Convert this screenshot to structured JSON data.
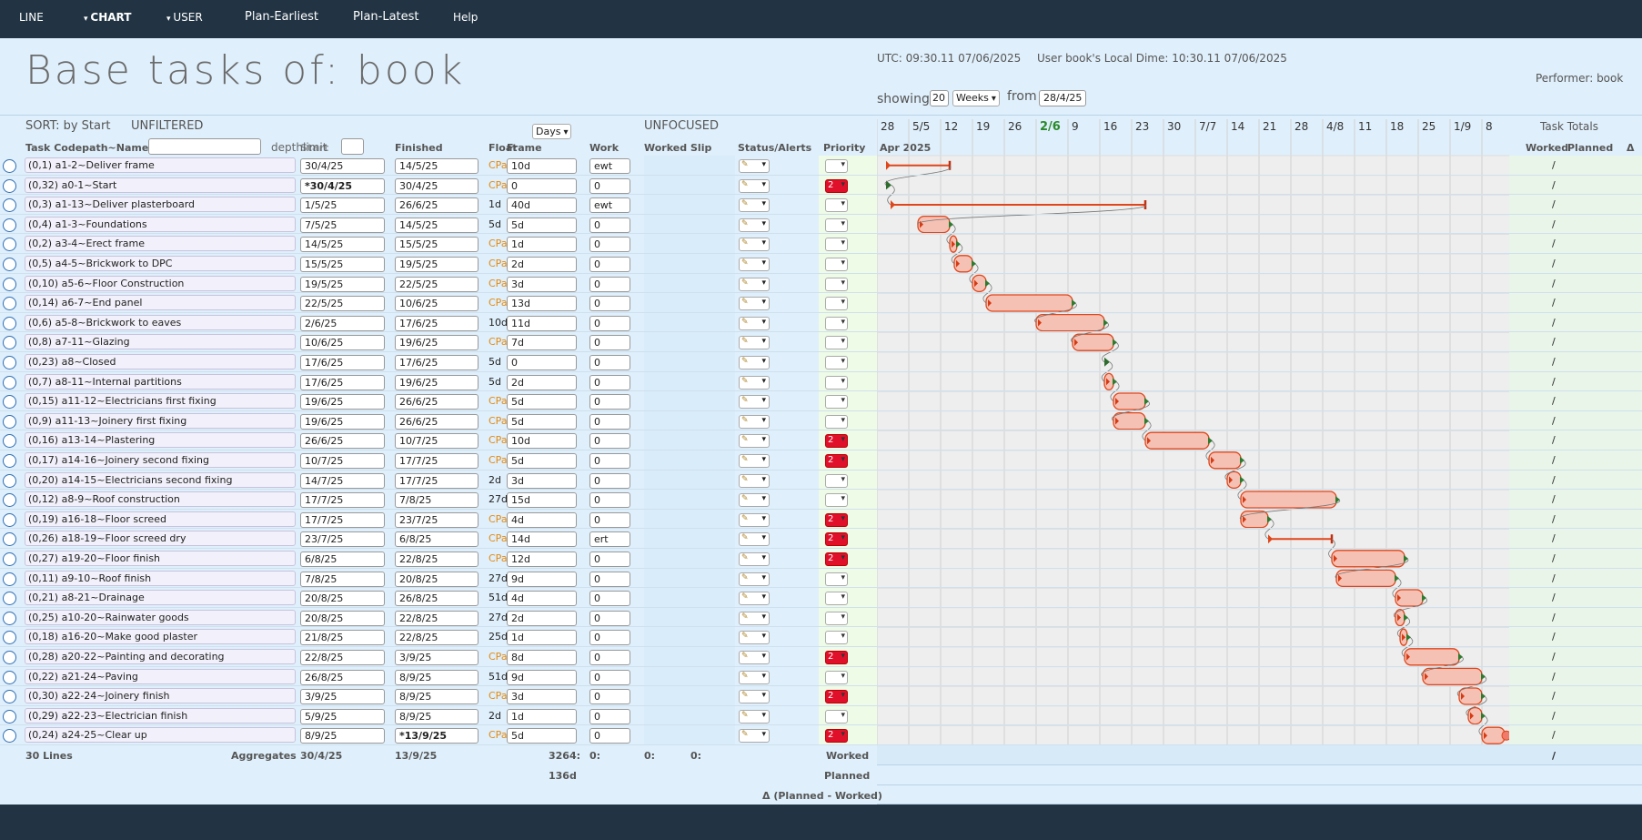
{
  "nav": {
    "line": "LINE",
    "chart": "CHART",
    "user": "USER",
    "plan_earliest": "Plan-Earliest",
    "plan_latest": "Plan-Latest",
    "help": "Help"
  },
  "header": {
    "title": "Base tasks of: book",
    "utc": "UTC: 09:30.11 07/06/2025",
    "local": "User book's Local Dime: 10:30.11 07/06/2025",
    "performer": "Performer: book",
    "showing_label": "showing",
    "showing_value": "20",
    "showing_unit": "Weeks",
    "from_label": "from",
    "from_value": "28/4/25"
  },
  "toolbar": {
    "sort": "SORT: by Start",
    "filter": "UNFILTERED",
    "focus": "UNFOCUSED",
    "unit": "Days",
    "depth": "depth",
    "limit": "limit"
  },
  "columns": {
    "task": "Task Codepath~Name",
    "start": "Start",
    "finished": "Finished",
    "float": "Float",
    "frame": "Frame",
    "work": "Work",
    "worked": "Worked",
    "slip": "Slip",
    "status": "Status/Alerts",
    "priority": "Priority",
    "month": "Apr 2025",
    "totals": "Task Totals",
    "tot_worked": "Worked",
    "tot_planned": "Planned",
    "tot_delta": "Δ"
  },
  "weeks": [
    "28",
    "5/5",
    "12",
    "19",
    "26",
    "2/6",
    "9",
    "16",
    "23",
    "30",
    "7/7",
    "14",
    "21",
    "28",
    "4/8",
    "11",
    "18",
    "25",
    "1/9",
    "8"
  ],
  "rows": [
    {
      "code": "(0,1)",
      "name": "a1-2~Deliver frame",
      "start": "30/4/25",
      "finished": "14/5/25",
      "float": "CPath",
      "frame": "10d",
      "work": "ewt",
      "priority": "",
      "tot": "/"
    },
    {
      "code": "(0,32)",
      "name": "a0-1~Start",
      "start": "*30/4/25",
      "finished": "30/4/25",
      "float": "CPath",
      "frame": "0",
      "work": "0",
      "priority": "2",
      "tot": "/"
    },
    {
      "code": "(0,3)",
      "name": "a1-13~Deliver plasterboard",
      "start": "1/5/25",
      "finished": "26/6/25",
      "float": "1d",
      "frame": "40d",
      "work": "ewt",
      "priority": "",
      "tot": "/"
    },
    {
      "code": "(0,4)",
      "name": "a1-3~Foundations",
      "start": "7/5/25",
      "finished": "14/5/25",
      "float": "5d",
      "frame": "5d",
      "work": "0",
      "priority": "",
      "tot": "/"
    },
    {
      "code": "(0,2)",
      "name": "a3-4~Erect frame",
      "start": "14/5/25",
      "finished": "15/5/25",
      "float": "CPath",
      "frame": "1d",
      "work": "0",
      "priority": "",
      "tot": "/"
    },
    {
      "code": "(0,5)",
      "name": "a4-5~Brickwork to DPC",
      "start": "15/5/25",
      "finished": "19/5/25",
      "float": "CPath",
      "frame": "2d",
      "work": "0",
      "priority": "",
      "tot": "/"
    },
    {
      "code": "(0,10)",
      "name": "a5-6~Floor Construction",
      "start": "19/5/25",
      "finished": "22/5/25",
      "float": "CPath",
      "frame": "3d",
      "work": "0",
      "priority": "",
      "tot": "/"
    },
    {
      "code": "(0,14)",
      "name": "a6-7~End panel",
      "start": "22/5/25",
      "finished": "10/6/25",
      "float": "CPath",
      "frame": "13d",
      "work": "0",
      "priority": "",
      "tot": "/"
    },
    {
      "code": "(0,6)",
      "name": "a5-8~Brickwork to eaves",
      "start": "2/6/25",
      "finished": "17/6/25",
      "float": "10d",
      "frame": "11d",
      "work": "0",
      "priority": "",
      "tot": "/"
    },
    {
      "code": "(0,8)",
      "name": "a7-11~Glazing",
      "start": "10/6/25",
      "finished": "19/6/25",
      "float": "CPath",
      "frame": "7d",
      "work": "0",
      "priority": "",
      "tot": "/"
    },
    {
      "code": "(0,23)",
      "name": "a8~Closed",
      "start": "17/6/25",
      "finished": "17/6/25",
      "float": "5d",
      "frame": "0",
      "work": "0",
      "priority": "",
      "tot": "/"
    },
    {
      "code": "(0,7)",
      "name": "a8-11~Internal partitions",
      "start": "17/6/25",
      "finished": "19/6/25",
      "float": "5d",
      "frame": "2d",
      "work": "0",
      "priority": "",
      "tot": "/"
    },
    {
      "code": "(0,15)",
      "name": "a11-12~Electricians first fixing",
      "start": "19/6/25",
      "finished": "26/6/25",
      "float": "CPath",
      "frame": "5d",
      "work": "0",
      "priority": "",
      "tot": "/"
    },
    {
      "code": "(0,9)",
      "name": "a11-13~Joinery first fixing",
      "start": "19/6/25",
      "finished": "26/6/25",
      "float": "CPath",
      "frame": "5d",
      "work": "0",
      "priority": "",
      "tot": "/"
    },
    {
      "code": "(0,16)",
      "name": "a13-14~Plastering",
      "start": "26/6/25",
      "finished": "10/7/25",
      "float": "CPath",
      "frame": "10d",
      "work": "0",
      "priority": "2",
      "tot": "/"
    },
    {
      "code": "(0,17)",
      "name": "a14-16~Joinery second fixing",
      "start": "10/7/25",
      "finished": "17/7/25",
      "float": "CPath",
      "frame": "5d",
      "work": "0",
      "priority": "2",
      "tot": "/"
    },
    {
      "code": "(0,20)",
      "name": "a14-15~Electricians second fixing",
      "start": "14/7/25",
      "finished": "17/7/25",
      "float": "2d",
      "frame": "3d",
      "work": "0",
      "priority": "",
      "tot": "/"
    },
    {
      "code": "(0,12)",
      "name": "a8-9~Roof construction",
      "start": "17/7/25",
      "finished": "7/8/25",
      "float": "27d",
      "frame": "15d",
      "work": "0",
      "priority": "",
      "tot": "/"
    },
    {
      "code": "(0,19)",
      "name": "a16-18~Floor screed",
      "start": "17/7/25",
      "finished": "23/7/25",
      "float": "CPath",
      "frame": "4d",
      "work": "0",
      "priority": "2",
      "tot": "/"
    },
    {
      "code": "(0,26)",
      "name": "a18-19~Floor screed dry",
      "start": "23/7/25",
      "finished": "6/8/25",
      "float": "CPath",
      "frame": "14d",
      "work": "ert",
      "priority": "2",
      "tot": "/"
    },
    {
      "code": "(0,27)",
      "name": "a19-20~Floor finish",
      "start": "6/8/25",
      "finished": "22/8/25",
      "float": "CPath",
      "frame": "12d",
      "work": "0",
      "priority": "2",
      "tot": "/"
    },
    {
      "code": "(0,11)",
      "name": "a9-10~Roof finish",
      "start": "7/8/25",
      "finished": "20/8/25",
      "float": "27d",
      "frame": "9d",
      "work": "0",
      "priority": "",
      "tot": "/"
    },
    {
      "code": "(0,21)",
      "name": "a8-21~Drainage",
      "start": "20/8/25",
      "finished": "26/8/25",
      "float": "51d",
      "frame": "4d",
      "work": "0",
      "priority": "",
      "tot": "/"
    },
    {
      "code": "(0,25)",
      "name": "a10-20~Rainwater goods",
      "start": "20/8/25",
      "finished": "22/8/25",
      "float": "27d",
      "frame": "2d",
      "work": "0",
      "priority": "",
      "tot": "/"
    },
    {
      "code": "(0,18)",
      "name": "a16-20~Make good plaster",
      "start": "21/8/25",
      "finished": "22/8/25",
      "float": "25d",
      "frame": "1d",
      "work": "0",
      "priority": "",
      "tot": "/"
    },
    {
      "code": "(0,28)",
      "name": "a20-22~Painting and decorating",
      "start": "22/8/25",
      "finished": "3/9/25",
      "float": "CPath",
      "frame": "8d",
      "work": "0",
      "priority": "2",
      "tot": "/"
    },
    {
      "code": "(0,22)",
      "name": "a21-24~Paving",
      "start": "26/8/25",
      "finished": "8/9/25",
      "float": "51d",
      "frame": "9d",
      "work": "0",
      "priority": "",
      "tot": "/"
    },
    {
      "code": "(0,30)",
      "name": "a22-24~Joinery finish",
      "start": "3/9/25",
      "finished": "8/9/25",
      "float": "CPath",
      "frame": "3d",
      "work": "0",
      "priority": "2",
      "tot": "/"
    },
    {
      "code": "(0,29)",
      "name": "a22-23~Electrician finish",
      "start": "5/9/25",
      "finished": "8/9/25",
      "float": "2d",
      "frame": "1d",
      "work": "0",
      "priority": "",
      "tot": "/"
    },
    {
      "code": "(0,24)",
      "name": "a24-25~Clear up",
      "start": "8/9/25",
      "finished": "*13/9/25",
      "float": "CPath",
      "frame": "5d",
      "work": "0",
      "priority": "2",
      "tot": "/"
    }
  ],
  "aggregates": {
    "lines": "30 Lines",
    "label": "Aggregates",
    "start": "30/4/25",
    "finished": "13/9/25",
    "frame": "3264:",
    "frame2": "136d",
    "worked": "0:",
    "slip": "0:",
    "status": "0:",
    "row_worked": "Worked",
    "row_planned": "Planned",
    "row_delta": "Δ (Planned - Worked)",
    "tot": "/"
  },
  "colors": {
    "nav": "#223444",
    "bar_fill": "#f5c1b4",
    "bar_stroke": "#e0461a",
    "priority_high": "#e0102a",
    "cpath": "#e38a12",
    "current_week": "#2a8a2a"
  }
}
